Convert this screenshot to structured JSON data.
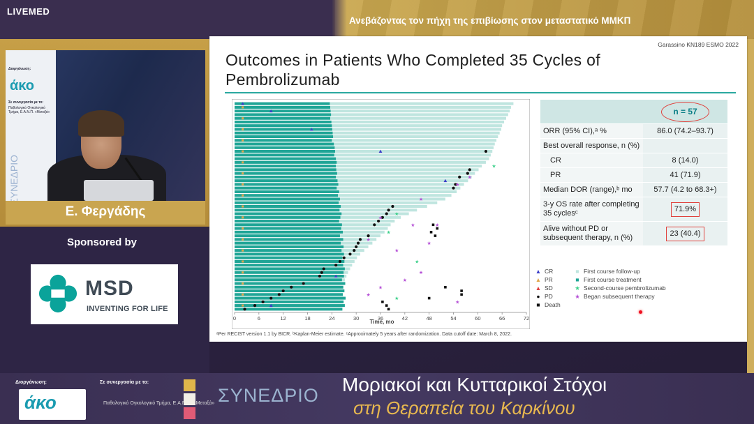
{
  "header": {
    "brand": "LIVEMED",
    "talk_title": "Ανεβάζοντας τον πήχη της επιβίωσης στον μεταστατικό ΜΜΚΠ"
  },
  "speaker": {
    "name": "Ε. Φεργάδης",
    "poster_org": "Διοργάνωση:",
    "poster_logo": "άκο",
    "poster_collab": "Σε συνεργασία με το:",
    "poster_collab_text": "Παθολογικό Ογκολογικό Τμήμα, Ε.Α.Ν.Π. «Μεταξά»",
    "poster_vertical": "ΣΥΝΕΔΡΙΟ"
  },
  "sponsor": {
    "label": "Sponsored by",
    "name": "MSD",
    "tagline": "INVENTING FOR LIFE"
  },
  "slide": {
    "citation": "Garassino KN189 ESMO 2022",
    "title": "Outcomes in Patients Who Completed 35 Cycles of Pembrolizumab",
    "footnote": "ᵃPer RECIST version 1.1 by BICR. ᵇKaplan-Meier estimate. ᶜApproximately 5 years after randomization. Data cutoff date: March 8, 2022.",
    "table": {
      "header": "n = 57",
      "rows": [
        {
          "label": "ORR (95% CI),ᵃ %",
          "value": "86.0 (74.2–93.7)",
          "indent": false,
          "box": false
        },
        {
          "label": "Best overall response, n (%)",
          "value": "",
          "indent": false,
          "box": false
        },
        {
          "label": "CR",
          "value": "8 (14.0)",
          "indent": true,
          "box": false
        },
        {
          "label": "PR",
          "value": "41 (71.9)",
          "indent": true,
          "box": false
        },
        {
          "label": "Median DOR (range),ᵇ mo",
          "value": "57.7 (4.2 to 68.3+)",
          "indent": false,
          "box": false
        },
        {
          "label": "3-y OS rate after completing 35 cyclesᶜ",
          "value": "71.9%",
          "indent": false,
          "box": true
        },
        {
          "label": "Alive without PD or subsequent therapy, n (%)",
          "value": "23 (40.4)",
          "indent": false,
          "box": true
        }
      ]
    },
    "legend": {
      "left": [
        "CR",
        "PR",
        "SD",
        "PD",
        "Death"
      ],
      "right": [
        "First course follow-up",
        "First course treatment",
        "Second-course pembrolizumab",
        "Began subsequent therapy"
      ]
    }
  },
  "chart_data": {
    "type": "bar",
    "title": "",
    "xlabel": "Time, mo",
    "ylabel": "",
    "xlim": [
      0,
      72
    ],
    "xticks": [
      "0",
      "6",
      "12",
      "18",
      "24",
      "30",
      "36",
      "42",
      "48",
      "54",
      "60",
      "66",
      "72"
    ],
    "series": [
      {
        "name": "First course treatment",
        "values": [
          23.5,
          23.6,
          23.7,
          23.8,
          23.6,
          23.9,
          24.0,
          24.1,
          24.2,
          24.3,
          24.0,
          24.5,
          24.7,
          24.8,
          24.6,
          25.0,
          25.2,
          25.0,
          25.1,
          25.3,
          25.0,
          25.4,
          25.6,
          25.2,
          25.8,
          25.5,
          26.0,
          25.7,
          26.2,
          25.9,
          26.4,
          26.1,
          25.8,
          26.5,
          26.3,
          26.7,
          26.0,
          26.8,
          26.2,
          26.9,
          26.4,
          27.0,
          26.6,
          27.1,
          26.8,
          27.2,
          26.9,
          27.0,
          26.5,
          27.3,
          26.8,
          27.1,
          26.7,
          27.4,
          26.9,
          27.2,
          26.6
        ]
      },
      {
        "name": "First course follow-up",
        "values": [
          68.8,
          68.2,
          67.9,
          67.5,
          67.0,
          66.5,
          66.0,
          65.8,
          65.4,
          65.0,
          64.6,
          64.2,
          63.9,
          63.6,
          63.2,
          62.8,
          62.0,
          61.0,
          60.2,
          59.3,
          58.5,
          57.6,
          56.6,
          55.7,
          54.8,
          53.5,
          52.0,
          50.0,
          47.5,
          45.0,
          43.0,
          41.0,
          39.5,
          38.5,
          37.8,
          37.0,
          36.0,
          35.0,
          34.0,
          33.0,
          32.0,
          31.0,
          30.2,
          29.6,
          29.0,
          28.5,
          28.0,
          27.6,
          27.2,
          27.3,
          26.9,
          27.1,
          26.7,
          27.4,
          26.9,
          27.2,
          26.6
        ]
      },
      {
        "name": "Second-course pembrolizumab",
        "values": []
      },
      {
        "name": "PD",
        "values": [
          null,
          null,
          null,
          null,
          null,
          null,
          null,
          null,
          null,
          null,
          null,
          null,
          null,
          62.0,
          null,
          null,
          null,
          null,
          58.0,
          57.5,
          55.5,
          null,
          54.5,
          54.0,
          null,
          null,
          null,
          null,
          39.0,
          38.0,
          37.5,
          36.5,
          35.5,
          34.5,
          null,
          null,
          33.0,
          31.0,
          30.5,
          30.0,
          29.5,
          28.5,
          27.0,
          26.0,
          25.0,
          22.0,
          21.5,
          21.0,
          null,
          17.0,
          14.0,
          12.0,
          11.0,
          9.0,
          7.0,
          5.0,
          2.5
        ]
      },
      {
        "name": "Death",
        "values": [
          null,
          null,
          null,
          null,
          null,
          null,
          null,
          null,
          null,
          null,
          null,
          null,
          null,
          null,
          null,
          null,
          null,
          null,
          null,
          null,
          null,
          null,
          null,
          null,
          null,
          null,
          null,
          null,
          null,
          null,
          null,
          null,
          null,
          49.0,
          50.0,
          48.5,
          49.5,
          null,
          null,
          null,
          null,
          null,
          null,
          null,
          null,
          null,
          null,
          null,
          null,
          null,
          52.0,
          56.0,
          56.0,
          48.0,
          36.5,
          37.5,
          38.0
        ]
      }
    ]
  }
}
